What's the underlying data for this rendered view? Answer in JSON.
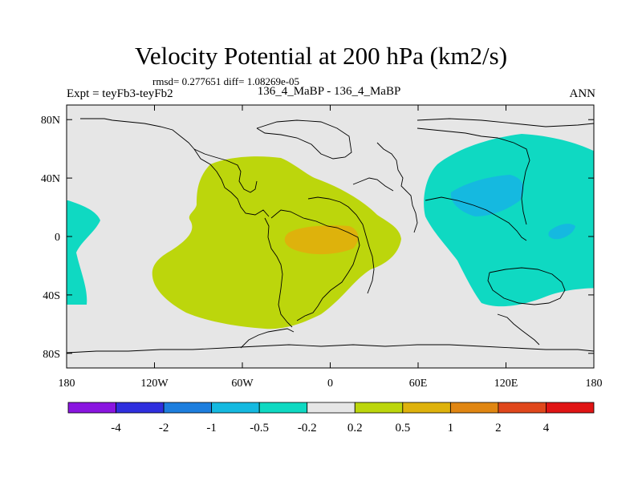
{
  "chart_data": {
    "type": "heatmap",
    "title": "Velocity Potential at 200 hPa (km2/s)",
    "stats_line": "rmsd= 0.277651 diff= 1.08269e-05",
    "left_label": "Expt = teyFb3-teyFb2",
    "center_label": "136_4_MaBP - 136_4_MaBP",
    "right_label": "ANN",
    "xlabel": "",
    "ylabel": "",
    "x_ticks": [
      "180",
      "120W",
      "60W",
      "0",
      "60E",
      "120E",
      "180"
    ],
    "y_ticks": [
      "80N",
      "40N",
      "0",
      "40S",
      "80S"
    ],
    "xlim": [
      -180,
      180
    ],
    "ylim": [
      -90,
      90
    ],
    "colorbar": {
      "labels": [
        "-4",
        "-2",
        "-1",
        "-0.5",
        "-0.2",
        "0.2",
        "0.5",
        "1",
        "2",
        "4"
      ],
      "colors": [
        "#8a16e0",
        "#2f2fde",
        "#1d7ede",
        "#15b9e0",
        "#0fd9c2",
        "#e6e6e6",
        "#bcd60c",
        "#deb20c",
        "#e08612",
        "#e0471c",
        "#e01414"
      ]
    },
    "regions": [
      {
        "name": "positive-0.2-0.5",
        "color": "#bcd60c",
        "center": [
          -60,
          20
        ],
        "range_lon": [
          -120,
          50
        ],
        "range_lat": [
          -62,
          55
        ]
      },
      {
        "name": "positive-0.5-1",
        "color": "#deb20c",
        "center": [
          -15,
          0
        ],
        "range_lon": [
          -30,
          20
        ],
        "range_lat": [
          -12,
          8
        ]
      },
      {
        "name": "negative-0.2-0.5-east",
        "color": "#0fd9c2",
        "center": [
          120,
          25
        ],
        "range_lon": [
          65,
          180
        ],
        "range_lat": [
          -48,
          72
        ]
      },
      {
        "name": "negative-0.2-0.5-west",
        "color": "#0fd9c2",
        "center": [
          -170,
          -15
        ],
        "range_lon": [
          -180,
          -165
        ],
        "range_lat": [
          -48,
          25
        ]
      },
      {
        "name": "negative-0.5-1",
        "color": "#15b9e0",
        "center": [
          100,
          28
        ],
        "range_lon": [
          85,
          118
        ],
        "range_lat": [
          12,
          43
        ]
      },
      {
        "name": "negative-0.5-1-small",
        "color": "#15b9e0",
        "center": [
          152,
          3
        ],
        "range_lon": [
          145,
          158
        ],
        "range_lat": [
          -5,
          10
        ]
      }
    ]
  }
}
